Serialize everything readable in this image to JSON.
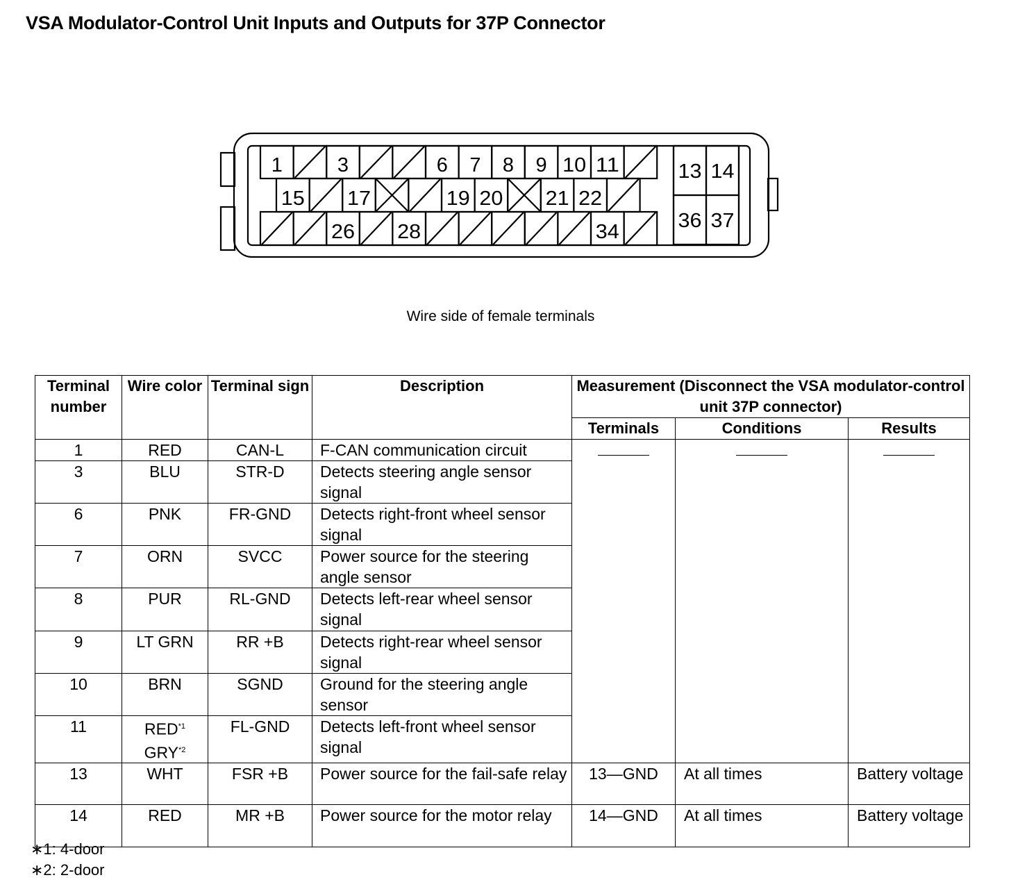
{
  "title": "VSA Modulator-Control Unit Inputs and Outputs for 37P Connector",
  "connector": {
    "rows": [
      [
        "1",
        "/",
        "3",
        "/",
        "/",
        "6",
        "7",
        "8",
        "9",
        "10",
        "11",
        "/"
      ],
      [
        "15",
        "/",
        "17",
        "x",
        "/",
        "19",
        "20",
        "x",
        "21",
        "22",
        "/"
      ],
      [
        "/",
        "/",
        "26",
        "/",
        "28",
        "/",
        "/",
        "/",
        "/",
        "/",
        "34",
        "/"
      ]
    ],
    "right_block": [
      [
        "13",
        "14"
      ],
      [
        "36",
        "37"
      ]
    ]
  },
  "caption": "Wire side of female terminals",
  "table": {
    "headers": {
      "terminal_number": "Terminal number",
      "wire_color": "Wire color",
      "terminal_sign": "Terminal sign",
      "description": "Description",
      "measurement": "Measurement (Disconnect the VSA modulator-control unit 37P connector)",
      "terminals": "Terminals",
      "conditions": "Conditions",
      "results": "Results"
    },
    "rows": [
      {
        "num": "1",
        "color": "RED",
        "sign": "CAN-L",
        "desc": "F-CAN communication circuit"
      },
      {
        "num": "3",
        "color": "BLU",
        "sign": "STR-D",
        "desc": "Detects steering angle sensor signal"
      },
      {
        "num": "6",
        "color": "PNK",
        "sign": "FR-GND",
        "desc": "Detects right-front wheel sensor signal"
      },
      {
        "num": "7",
        "color": "ORN",
        "sign": "SVCC",
        "desc": "Power source for the steering angle sensor"
      },
      {
        "num": "8",
        "color": "PUR",
        "sign": "RL-GND",
        "desc": "Detects left-rear wheel sensor signal"
      },
      {
        "num": "9",
        "color": "LT GRN",
        "sign": "RR +B",
        "desc": "Detects right-rear wheel sensor signal"
      },
      {
        "num": "10",
        "color": "BRN",
        "sign": "SGND",
        "desc": "Ground for the steering angle sensor"
      },
      {
        "num": "11",
        "color": "RED",
        "color_note": "*1",
        "color2": "GRY",
        "color2_note": "*2",
        "sign": "FL-GND",
        "desc": "Detects left-front wheel sensor signal"
      },
      {
        "num": "13",
        "color": "WHT",
        "sign": "FSR +B",
        "desc": "Power source for the fail-safe relay",
        "terminals": "13—GND",
        "conditions": "At all times",
        "results": "Battery voltage"
      },
      {
        "num": "14",
        "color": "RED",
        "sign": "MR +B",
        "desc": "Power source for the motor relay",
        "terminals": "14—GND",
        "conditions": "At all times",
        "results": "Battery voltage"
      }
    ]
  },
  "footnotes": [
    "∗1: 4-door",
    "∗2: 2-door"
  ]
}
